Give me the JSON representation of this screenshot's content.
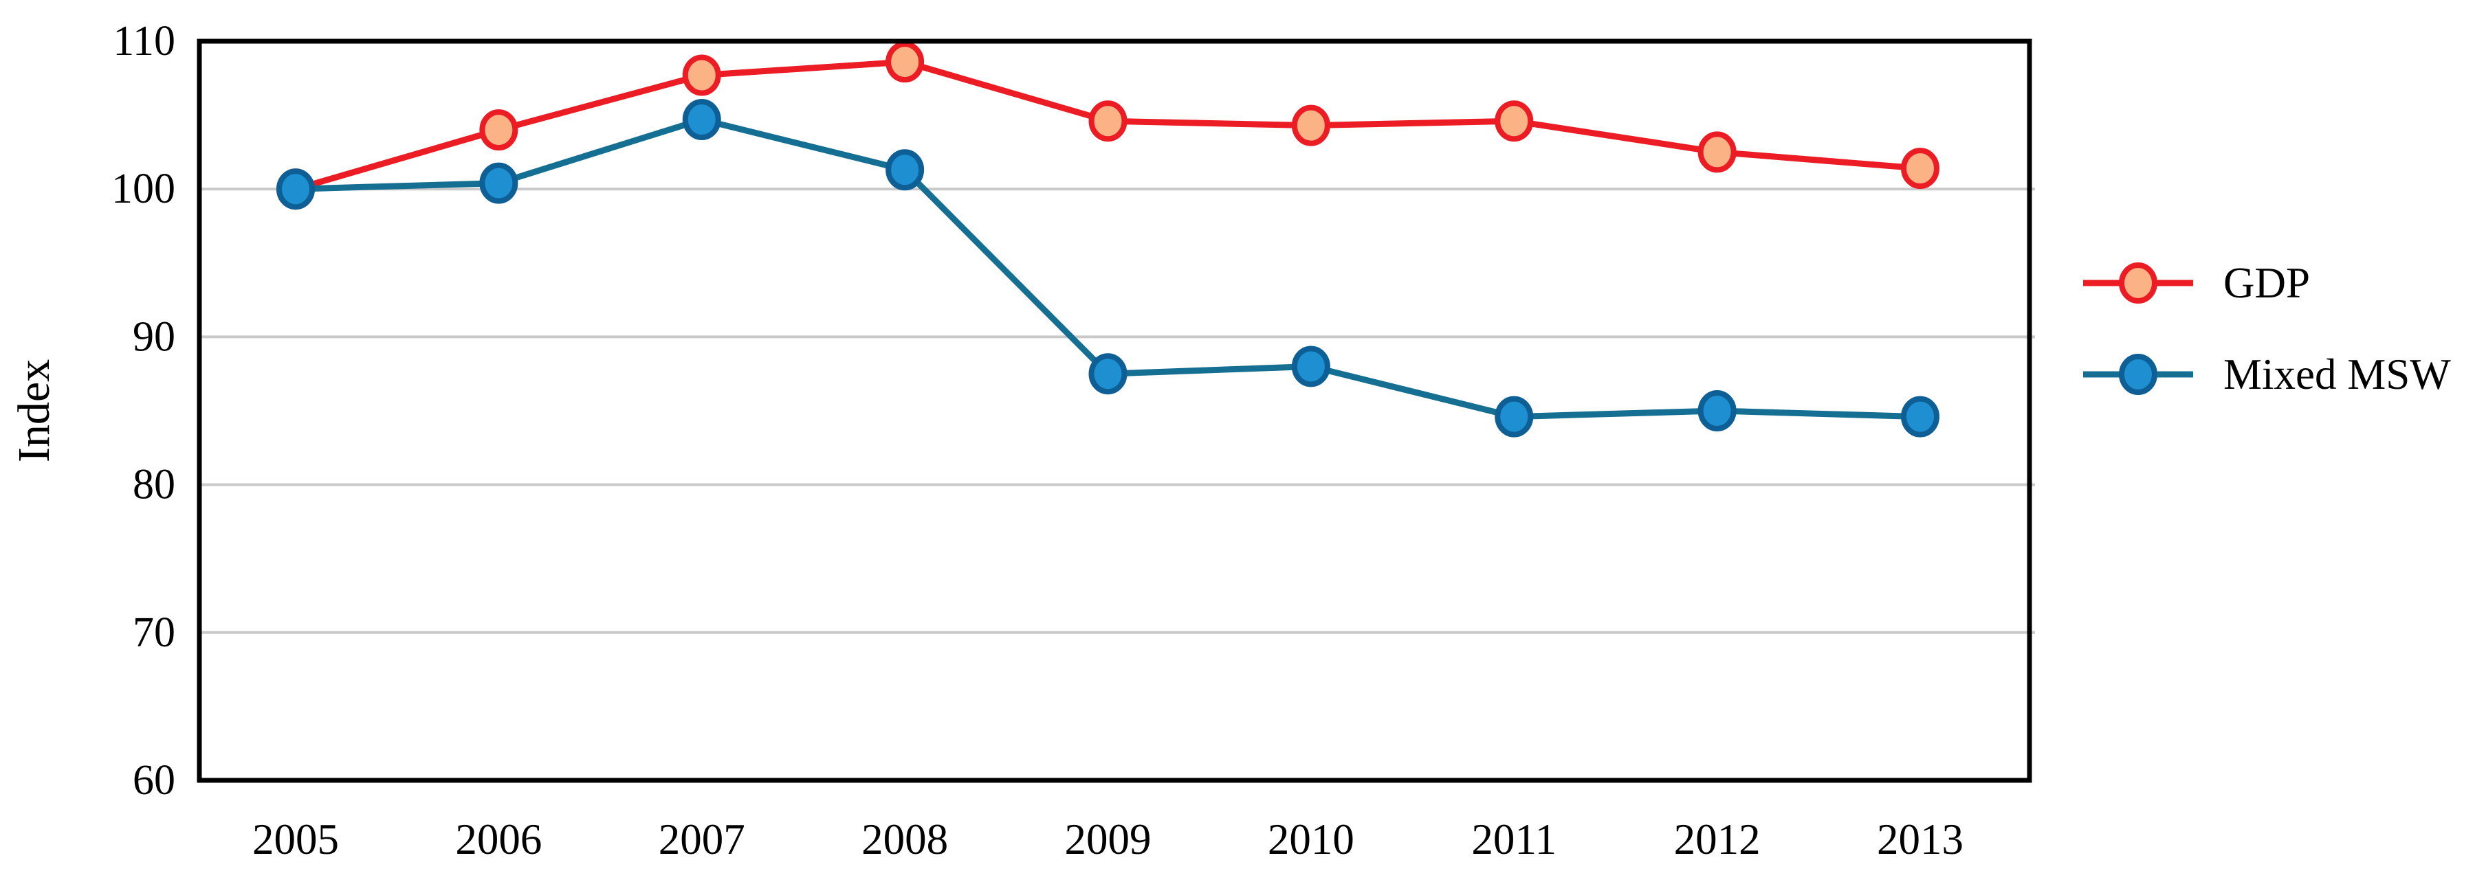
{
  "chart_data": {
    "type": "line",
    "title": "",
    "xlabel": "",
    "ylabel": "Index",
    "x": [
      2005,
      2006,
      2007,
      2008,
      2009,
      2010,
      2011,
      2012,
      2013
    ],
    "ylim": [
      60,
      110
    ],
    "yticks": [
      60,
      70,
      80,
      90,
      100,
      110
    ],
    "grid": "horizontal gridlines at 70, 80, 90, 100",
    "legend_position": "right-center",
    "series": [
      {
        "name": "GDP",
        "values": [
          100,
          104,
          107.7,
          108.6,
          104.6,
          104.3,
          104.6,
          102.5,
          101.4
        ],
        "line_color": "#EC1C24",
        "marker_fill": "#FBB284",
        "marker_edge": "#EC1C24"
      },
      {
        "name": "Mixed MSW",
        "values": [
          100,
          100.4,
          104.7,
          101.3,
          87.5,
          88,
          84.6,
          85,
          84.6
        ],
        "line_color": "#156F93",
        "marker_fill": "#1E90D2",
        "marker_edge": "#0D5F95"
      }
    ],
    "colors": {
      "gridline": "#C9C9C9",
      "axis_box": "#000000",
      "text": "#000000",
      "background": "#FFFFFF"
    }
  }
}
